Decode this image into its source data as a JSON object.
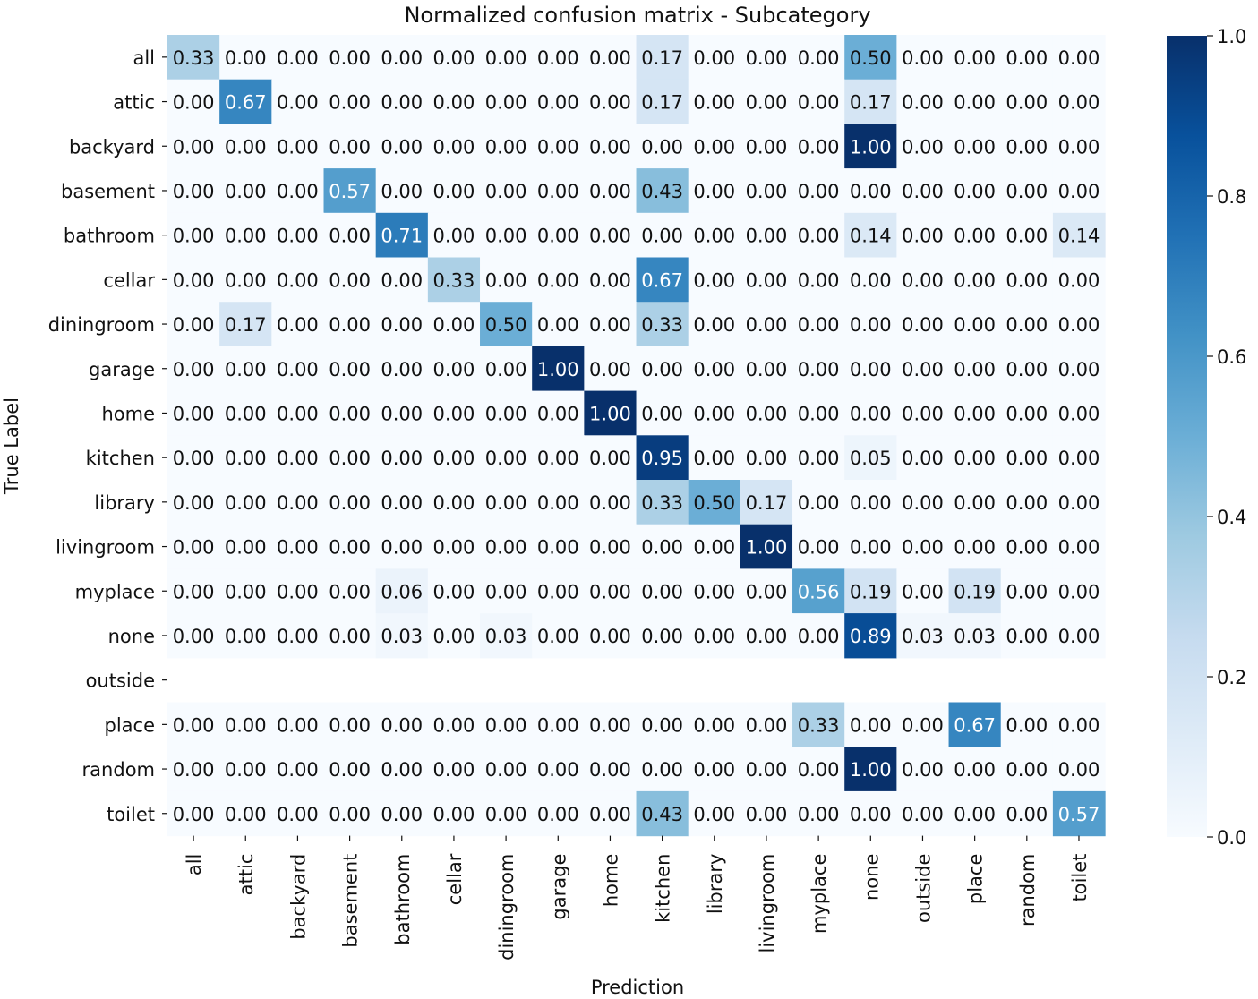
{
  "chart_data": {
    "type": "heatmap",
    "title": "Normalized confusion matrix - Subcategory",
    "xlabel": "Prediction",
    "ylabel": "True Label",
    "x_categories": [
      "all",
      "attic",
      "backyard",
      "basement",
      "bathroom",
      "cellar",
      "diningroom",
      "garage",
      "home",
      "kitchen",
      "library",
      "livingroom",
      "myplace",
      "none",
      "outside",
      "place",
      "random",
      "toilet"
    ],
    "y_categories": [
      "all",
      "attic",
      "backyard",
      "basement",
      "bathroom",
      "cellar",
      "diningroom",
      "garage",
      "home",
      "kitchen",
      "library",
      "livingroom",
      "myplace",
      "none",
      "outside",
      "place",
      "random",
      "toilet"
    ],
    "values": [
      [
        0.33,
        0,
        0,
        0,
        0,
        0,
        0,
        0,
        0,
        0.17,
        0,
        0,
        0,
        0.5,
        0,
        0,
        0,
        0
      ],
      [
        0,
        0.67,
        0,
        0,
        0,
        0,
        0,
        0,
        0,
        0.17,
        0,
        0,
        0,
        0.17,
        0,
        0,
        0,
        0
      ],
      [
        0,
        0,
        0,
        0,
        0,
        0,
        0,
        0,
        0,
        0,
        0,
        0,
        0,
        1.0,
        0,
        0,
        0,
        0
      ],
      [
        0,
        0,
        0,
        0.57,
        0,
        0,
        0,
        0,
        0,
        0.43,
        0,
        0,
        0,
        0,
        0,
        0,
        0,
        0
      ],
      [
        0,
        0,
        0,
        0,
        0.71,
        0,
        0,
        0,
        0,
        0,
        0,
        0,
        0,
        0.14,
        0,
        0,
        0,
        0.14
      ],
      [
        0,
        0,
        0,
        0,
        0,
        0.33,
        0,
        0,
        0,
        0.67,
        0,
        0,
        0,
        0,
        0,
        0,
        0,
        0
      ],
      [
        0,
        0.17,
        0,
        0,
        0,
        0,
        0.5,
        0,
        0,
        0.33,
        0,
        0,
        0,
        0,
        0,
        0,
        0,
        0
      ],
      [
        0,
        0,
        0,
        0,
        0,
        0,
        0,
        1.0,
        0,
        0,
        0,
        0,
        0,
        0,
        0,
        0,
        0,
        0
      ],
      [
        0,
        0,
        0,
        0,
        0,
        0,
        0,
        0,
        1.0,
        0,
        0,
        0,
        0,
        0,
        0,
        0,
        0,
        0
      ],
      [
        0,
        0,
        0,
        0,
        0,
        0,
        0,
        0,
        0,
        0.95,
        0,
        0,
        0,
        0.05,
        0,
        0,
        0,
        0
      ],
      [
        0,
        0,
        0,
        0,
        0,
        0,
        0,
        0,
        0,
        0.33,
        0.5,
        0.17,
        0,
        0,
        0,
        0,
        0,
        0
      ],
      [
        0,
        0,
        0,
        0,
        0,
        0,
        0,
        0,
        0,
        0,
        0,
        1.0,
        0,
        0,
        0,
        0,
        0,
        0
      ],
      [
        0,
        0,
        0,
        0,
        0.06,
        0,
        0,
        0,
        0,
        0,
        0,
        0,
        0.56,
        0.19,
        0,
        0.19,
        0,
        0
      ],
      [
        0,
        0,
        0,
        0,
        0.03,
        0,
        0.03,
        0,
        0,
        0,
        0,
        0,
        0,
        0.89,
        0.03,
        0.03,
        0,
        0
      ],
      null,
      [
        0,
        0,
        0,
        0,
        0,
        0,
        0,
        0,
        0,
        0,
        0,
        0,
        0.33,
        0,
        0,
        0.67,
        0,
        0
      ],
      [
        0,
        0,
        0,
        0,
        0,
        0,
        0,
        0,
        0,
        0,
        0,
        0,
        0,
        1.0,
        0,
        0,
        0,
        0
      ],
      [
        0,
        0,
        0,
        0,
        0,
        0,
        0,
        0,
        0,
        0.43,
        0,
        0,
        0,
        0,
        0,
        0,
        0,
        0.57
      ]
    ],
    "value_format": "0.00",
    "colormap": "Blues",
    "colorbar": {
      "min": 0.0,
      "max": 1.0,
      "ticks": [
        "0.0",
        "0.2",
        "0.4",
        "0.6",
        "0.8",
        "1.0"
      ]
    },
    "grid": false
  }
}
